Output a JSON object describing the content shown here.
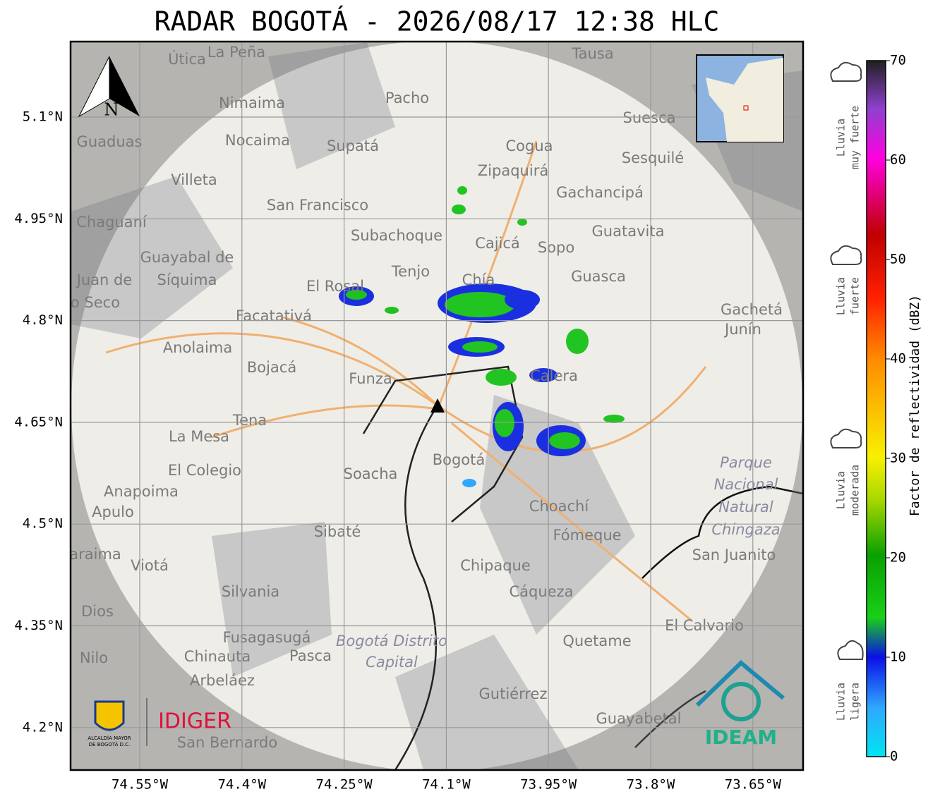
{
  "header": {
    "title": "RADAR BOGOTÁ - 2026/08/17 12:38 HLC"
  },
  "map": {
    "lon_ticks": [
      "74.55°W",
      "74.4°W",
      "74.25°W",
      "74.1°W",
      "73.95°W",
      "73.8°W",
      "73.65°W"
    ],
    "lat_ticks": [
      "5.1°N",
      "4.95°N",
      "4.8°N",
      "4.65°N",
      "4.5°N",
      "4.35°N",
      "4.2°N"
    ],
    "north_label": "N",
    "places": [
      "La Peña",
      "Útica",
      "Tausa",
      "Pacho",
      "Nimaima",
      "Suesca",
      "Guaduas",
      "Nocaima",
      "Supatá",
      "Cogua",
      "Sesquilé",
      "Zipaquirá",
      "Villeta",
      "Gachancipá",
      "San Francisco",
      "Chaguaní",
      "Guatavita",
      "Subachoque",
      "Cajicá",
      "Sopo",
      "Guayabal de",
      "Síquima",
      "Tenjo",
      "Chía",
      "Guasca",
      "Juan de",
      "El Rosal",
      "o Seco",
      "Gachetá",
      "Junín",
      "Facatativá",
      "Anolaima",
      "Bojacá",
      "Funza",
      "Calera",
      "Tena",
      "La Mesa",
      "Parque",
      "Nacional",
      "Natural",
      "Chingaza",
      "El Colegio",
      "Soacha",
      "Bogotá",
      "Anapoima",
      "Apulo",
      "Choachí",
      "Fómeque",
      "Sibaté",
      "San Juanito",
      "Chipaque",
      "araima",
      "Viotá",
      "Silvania",
      "Cáqueza",
      "Dios",
      "El Calvario",
      "Fusagasugá",
      "Bogotá Distrito",
      "Capital",
      "Quetame",
      "Nilo",
      "Chinauta",
      "Pasca",
      "Arbeláez",
      "Gutiérrez",
      "Guayabetal",
      "San Bernardo"
    ],
    "logos": {
      "alcaldia_1": "ALCALDÍA MAYOR",
      "alcaldia_2": "DE BOGOTÁ D.C.",
      "idiger": "IDIGER",
      "ideam": "IDEAM"
    }
  },
  "colorbar": {
    "ticks": [
      0,
      10,
      20,
      30,
      40,
      50,
      60,
      70
    ],
    "label": "Factor de reflectividad (dBZ)"
  },
  "legend": [
    [
      "Lluvia",
      "muy fuerte"
    ],
    [
      "Lluvia",
      "fuerte"
    ],
    [
      "Lluvia",
      "moderada"
    ],
    [
      "Lluvia",
      "ligera"
    ]
  ]
}
